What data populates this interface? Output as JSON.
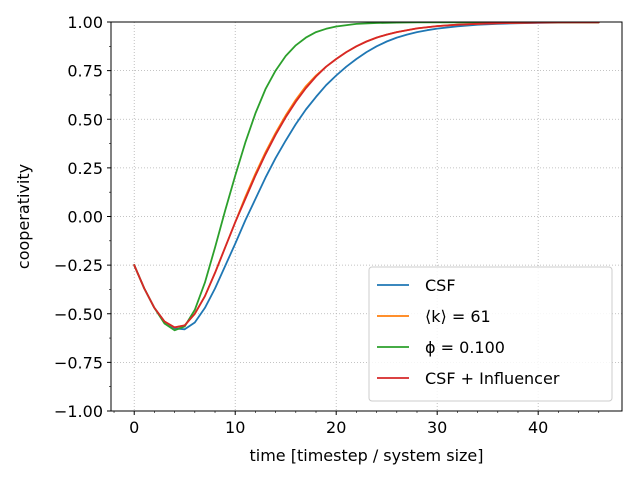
{
  "chart_data": {
    "type": "line",
    "title": "",
    "xlabel": "time [timestep / system size]",
    "ylabel": "cooperativity",
    "xlim": [
      -2.3,
      48.3
    ],
    "ylim": [
      -1.0,
      1.0
    ],
    "xticks": [
      0,
      10,
      20,
      30,
      40
    ],
    "yticks": [
      -1.0,
      -0.75,
      -0.5,
      -0.25,
      0.0,
      0.25,
      0.5,
      0.75,
      1.0
    ],
    "xtick_labels": [
      "0",
      "10",
      "20",
      "30",
      "40"
    ],
    "ytick_labels": [
      "−1.00",
      "−0.75",
      "−0.50",
      "−0.25",
      "0.00",
      "0.25",
      "0.50",
      "0.75",
      "1.00"
    ],
    "grid": true,
    "legend_position": "lower-right",
    "series": [
      {
        "name": "CSF",
        "color": "#1f77b4",
        "x": [
          0,
          1,
          2,
          3,
          4,
          5,
          6,
          7,
          8,
          9,
          10,
          11,
          12,
          13,
          14,
          15,
          16,
          17,
          18,
          19,
          20,
          21,
          22,
          23,
          24,
          25,
          26,
          27,
          28,
          29,
          30,
          32,
          34,
          36,
          38,
          40,
          42,
          44,
          46
        ],
        "y": [
          -0.25,
          -0.37,
          -0.47,
          -0.54,
          -0.575,
          -0.58,
          -0.545,
          -0.47,
          -0.37,
          -0.255,
          -0.14,
          -0.02,
          0.09,
          0.2,
          0.3,
          0.39,
          0.475,
          0.55,
          0.615,
          0.675,
          0.725,
          0.77,
          0.81,
          0.845,
          0.875,
          0.9,
          0.92,
          0.935,
          0.948,
          0.958,
          0.966,
          0.978,
          0.986,
          0.991,
          0.994,
          0.996,
          0.997,
          0.998,
          0.998
        ]
      },
      {
        "name": "⟨k⟩ = 61",
        "color": "#ff7f0e",
        "x": [
          0,
          1,
          2,
          3,
          4,
          5,
          6,
          7,
          8,
          9,
          10,
          11,
          12,
          13,
          14,
          15,
          16,
          17,
          18,
          19,
          20,
          21,
          22,
          23,
          24,
          25,
          26,
          28,
          30,
          32,
          34,
          36,
          38,
          40,
          42,
          44,
          46
        ],
        "y": [
          -0.25,
          -0.37,
          -0.47,
          -0.54,
          -0.57,
          -0.56,
          -0.5,
          -0.41,
          -0.29,
          -0.16,
          -0.03,
          0.1,
          0.22,
          0.33,
          0.43,
          0.52,
          0.6,
          0.67,
          0.725,
          0.77,
          0.81,
          0.845,
          0.875,
          0.9,
          0.92,
          0.935,
          0.948,
          0.967,
          0.979,
          0.986,
          0.991,
          0.994,
          0.996,
          0.997,
          0.998,
          0.998,
          0.998
        ]
      },
      {
        "name": "ϕ = 0.100",
        "color": "#2ca02c",
        "x": [
          0,
          1,
          2,
          3,
          4,
          5,
          6,
          7,
          8,
          9,
          10,
          11,
          12,
          13,
          14,
          15,
          16,
          17,
          18,
          19,
          20,
          22,
          24,
          26,
          28,
          30,
          32,
          34,
          36,
          38,
          40,
          42,
          44,
          46
        ],
        "y": [
          -0.25,
          -0.37,
          -0.47,
          -0.55,
          -0.585,
          -0.565,
          -0.48,
          -0.34,
          -0.16,
          0.03,
          0.21,
          0.38,
          0.53,
          0.655,
          0.75,
          0.825,
          0.88,
          0.92,
          0.948,
          0.965,
          0.977,
          0.99,
          0.995,
          0.997,
          0.998,
          0.998,
          0.998,
          0.998,
          0.998,
          0.998,
          0.998,
          0.998,
          0.998,
          0.998
        ]
      },
      {
        "name": "CSF + Influencer",
        "color": "#d62728",
        "x": [
          0,
          1,
          2,
          3,
          4,
          5,
          6,
          7,
          8,
          9,
          10,
          11,
          12,
          13,
          14,
          15,
          16,
          17,
          18,
          19,
          20,
          21,
          22,
          23,
          24,
          25,
          26,
          28,
          30,
          32,
          34,
          36,
          38,
          40,
          42,
          44,
          46
        ],
        "y": [
          -0.25,
          -0.37,
          -0.47,
          -0.54,
          -0.57,
          -0.56,
          -0.5,
          -0.41,
          -0.29,
          -0.16,
          -0.03,
          0.09,
          0.21,
          0.32,
          0.42,
          0.51,
          0.59,
          0.66,
          0.72,
          0.77,
          0.81,
          0.845,
          0.875,
          0.9,
          0.92,
          0.935,
          0.948,
          0.967,
          0.979,
          0.986,
          0.991,
          0.994,
          0.996,
          0.997,
          0.998,
          0.998,
          0.998
        ]
      }
    ]
  }
}
